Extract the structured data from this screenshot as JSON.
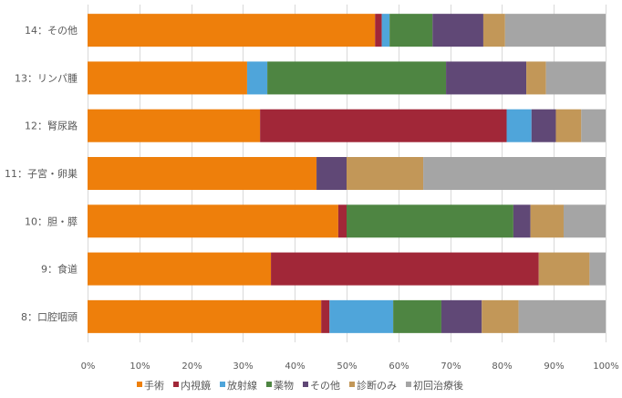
{
  "chart_data": {
    "type": "bar",
    "orientation": "horizontal",
    "stacked": "percent",
    "title": "",
    "xlabel": "",
    "ylabel": "",
    "xlim": [
      0,
      100
    ],
    "x_ticks": [
      "0%",
      "10%",
      "20%",
      "30%",
      "40%",
      "50%",
      "60%",
      "70%",
      "80%",
      "90%",
      "100%"
    ],
    "grid": true,
    "legend_position": "bottom",
    "categories": [
      "14：その他",
      "13：リンパ腫",
      "12：腎尿路",
      "11：子宮・卵巣",
      "10：胆・膵",
      "9：食道",
      "8：口腔咽頭"
    ],
    "series": [
      {
        "name": "手術",
        "color": "#EE7F0B",
        "values": [
          55.5,
          30.8,
          33.3,
          44.2,
          48.4,
          35.4,
          45.1
        ]
      },
      {
        "name": "内視鏡",
        "color": "#A12738",
        "values": [
          1.3,
          0,
          47.6,
          0,
          1.6,
          51.7,
          1.6
        ]
      },
      {
        "name": "放射線",
        "color": "#4FA5DA",
        "values": [
          1.5,
          3.9,
          4.8,
          0,
          0,
          0,
          12.3
        ]
      },
      {
        "name": "薬物",
        "color": "#4E8542",
        "values": [
          8.3,
          34.5,
          0,
          0,
          32.2,
          0,
          9.3
        ]
      },
      {
        "name": "その他",
        "color": "#604876",
        "values": [
          9.8,
          15.5,
          4.7,
          5.8,
          3.3,
          0,
          7.8
        ]
      },
      {
        "name": "診断のみ",
        "color": "#C29758",
        "values": [
          4.2,
          3.8,
          4.9,
          14.8,
          6.4,
          9.8,
          7.1
        ]
      },
      {
        "name": "初回治療後",
        "color": "#A5A5A5",
        "values": [
          19.4,
          11.5,
          4.7,
          35.2,
          8.1,
          3.1,
          16.8
        ]
      }
    ]
  }
}
